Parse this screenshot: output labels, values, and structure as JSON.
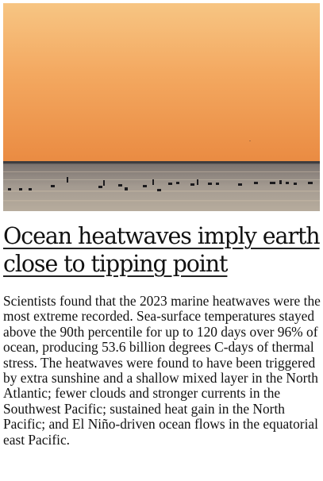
{
  "article": {
    "image": {
      "scene": "sunset-sea-surfers-photo"
    },
    "headline_line1": "Ocean heatwaves imply earth",
    "headline_line2": "close to tipping point",
    "body": "Scientists found that the 2023 marine heatwaves were the most extreme recorded. Sea-surface temperatures stayed above the 90th percentile for up to 120 days over 96% of ocean, producing 53.6 billion degrees C-days of thermal stress. The heatwaves were found to have been triggered by extra sunshine and a shallow mixed layer in the North Atlantic; fewer clouds and stronger currents in the Southwest Pacific; sustained heat gain in the North Pacific; and El Niño-driven ocean flows in the equatorial east Pacific."
  },
  "colors": {
    "sky_top": "#f6c27e",
    "sky_mid": "#f2a35c",
    "sky_horizon": "#ea8a40",
    "sea": "#9a8f86",
    "text": "#111111"
  }
}
